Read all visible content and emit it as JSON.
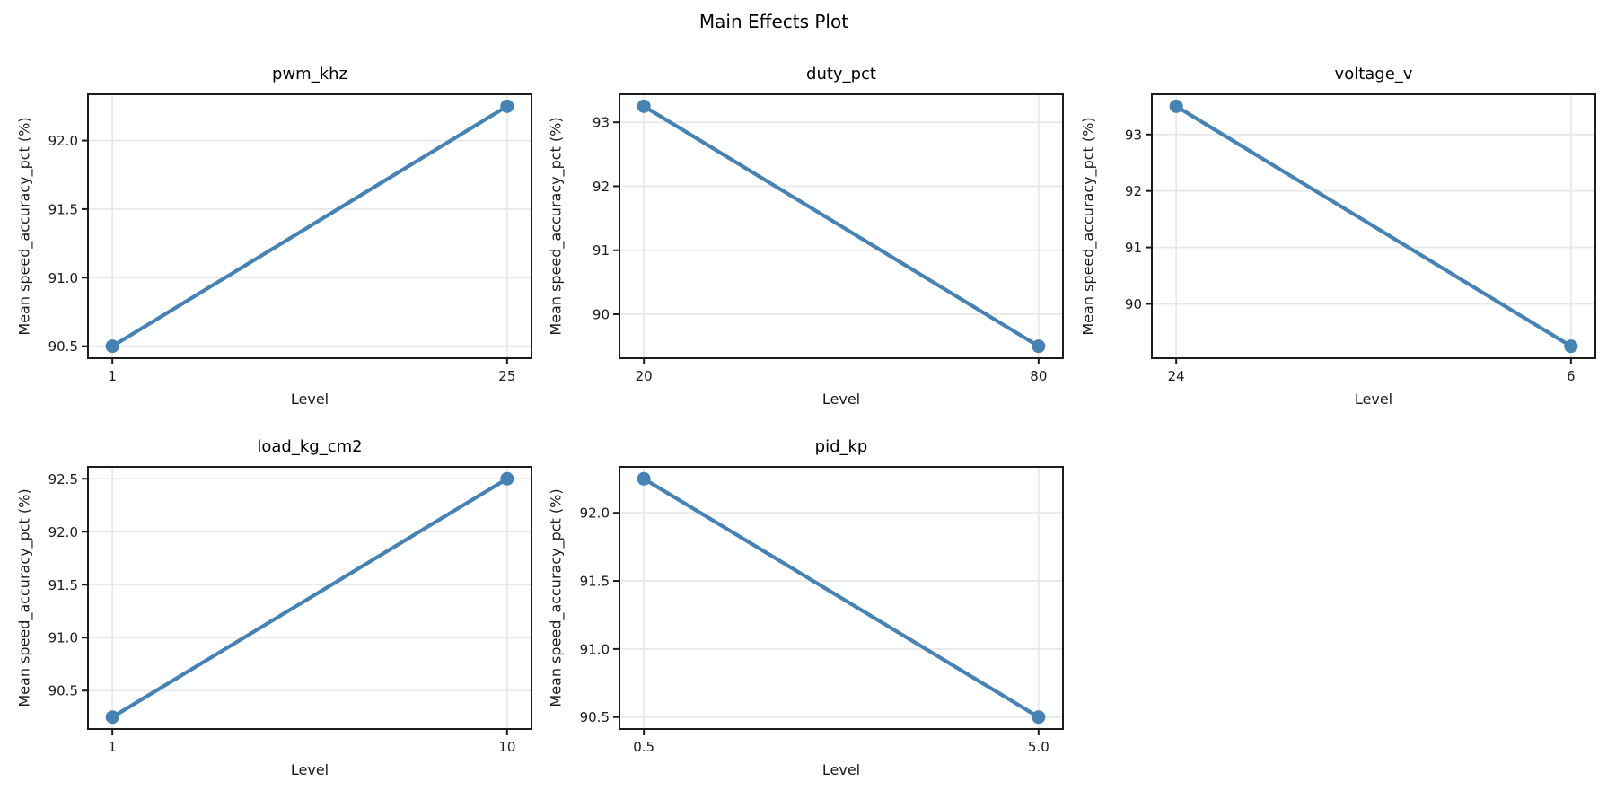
{
  "figure": {
    "suptitle": "Main Effects Plot",
    "line_color": "#4682B4",
    "background": "#ffffff",
    "axes_border_color": "#1c1c1c",
    "grid_color": "#e8e8e8"
  },
  "chart_data": [
    {
      "type": "line",
      "title": "pwm_khz",
      "xlabel": "Level",
      "ylabel": "Mean speed_accuracy_pct (%)",
      "categories": [
        "1",
        "25"
      ],
      "values": [
        90.5,
        92.25
      ],
      "yticks": [
        90.5,
        91.0,
        91.5,
        92.0
      ],
      "ytick_labels": [
        "90.5",
        "91.0",
        "91.5",
        "92.0"
      ],
      "ylim": [
        90.4125,
        92.3375
      ],
      "grid": true,
      "legend": "none"
    },
    {
      "type": "line",
      "title": "duty_pct",
      "xlabel": "Level",
      "ylabel": "Mean speed_accuracy_pct (%)",
      "categories": [
        "20",
        "80"
      ],
      "values": [
        93.25,
        89.5
      ],
      "yticks": [
        90,
        91,
        92,
        93
      ],
      "ytick_labels": [
        "90",
        "91",
        "92",
        "93"
      ],
      "ylim": [
        89.3125,
        93.4375
      ],
      "grid": true,
      "legend": "none"
    },
    {
      "type": "line",
      "title": "voltage_v",
      "xlabel": "Level",
      "ylabel": "Mean speed_accuracy_pct (%)",
      "categories": [
        "24",
        "6"
      ],
      "values": [
        93.5,
        89.25
      ],
      "yticks": [
        90,
        91,
        92,
        93
      ],
      "ytick_labels": [
        "90",
        "91",
        "92",
        "93"
      ],
      "ylim": [
        89.0375,
        93.7125
      ],
      "grid": true,
      "legend": "none"
    },
    {
      "type": "line",
      "title": "load_kg_cm2",
      "xlabel": "Level",
      "ylabel": "Mean speed_accuracy_pct (%)",
      "categories": [
        "1",
        "10"
      ],
      "values": [
        90.25,
        92.5
      ],
      "yticks": [
        90.5,
        91.0,
        91.5,
        92.0,
        92.5
      ],
      "ytick_labels": [
        "90.5",
        "91.0",
        "91.5",
        "92.0",
        "92.5"
      ],
      "ylim": [
        90.1375,
        92.6125
      ],
      "grid": true,
      "legend": "none"
    },
    {
      "type": "line",
      "title": "pid_kp",
      "xlabel": "Level",
      "ylabel": "Mean speed_accuracy_pct (%)",
      "categories": [
        "0.5",
        "5.0"
      ],
      "values": [
        92.25,
        90.5
      ],
      "yticks": [
        90.5,
        91.0,
        91.5,
        92.0
      ],
      "ytick_labels": [
        "90.5",
        "91.0",
        "91.5",
        "92.0"
      ],
      "ylim": [
        90.4125,
        92.3375
      ],
      "grid": true,
      "legend": "none"
    }
  ]
}
